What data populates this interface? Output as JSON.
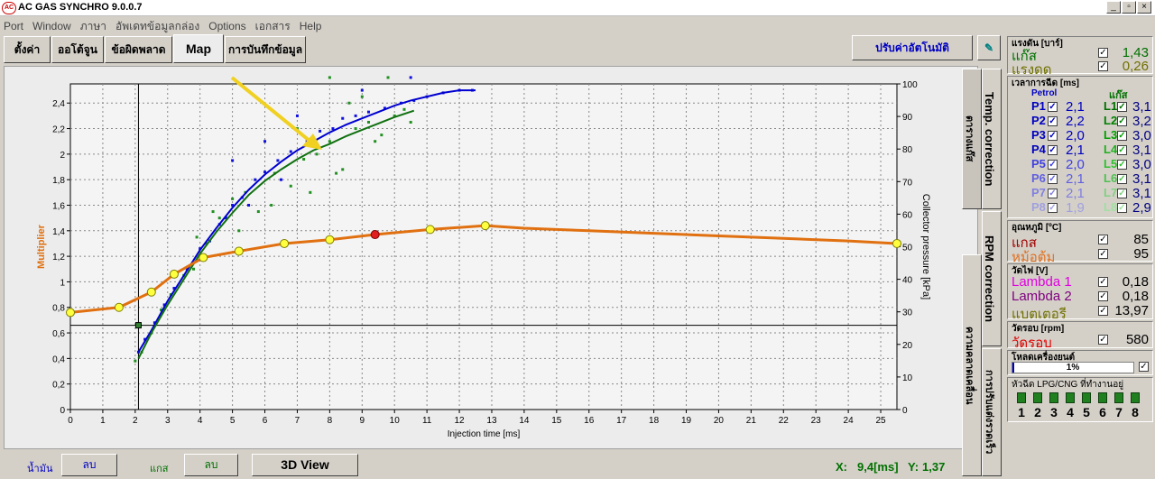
{
  "window": {
    "title": "AC GAS SYNCHRO  9.0.0.7",
    "min": "_",
    "max": "▫",
    "close": "×",
    "logo": "AC"
  },
  "menu": [
    "Port",
    "Window",
    "ภาษา",
    "อัพเดทข้อมูลกล่อง",
    "Options",
    "เอกสาร",
    "Help"
  ],
  "tabs": [
    "ตั้งค่า",
    "ออโต้จูน",
    "ข้อผิดพลาด",
    "Map",
    "การบันทึกข้อมูล"
  ],
  "auto_button": "ปรับค่าอัตโนมัติ",
  "side_tabs": [
    "Temp. correction",
    "ตารางแก๊ส",
    "RPM correction",
    "ความคลาดเคลื่อน",
    "การปรับแต่งรวดเร็ว"
  ],
  "bottom": {
    "petrol_label": "น้ำมัน",
    "petrol_btn": "ลบ",
    "gas_label": "แกส",
    "gas_btn": "ลบ",
    "view_btn": "3D View",
    "x_label": "X:",
    "x_value": "9,4[ms]",
    "y_label": "Y:",
    "y_value": "1,37"
  },
  "pressure": {
    "title": "แรงดัน [บาร์]",
    "rows": [
      {
        "label": "แก๊ส",
        "value": "1,43",
        "color": "#007000"
      },
      {
        "label": "แรงดด",
        "value": "0,26",
        "color": "#707000"
      }
    ]
  },
  "injection": {
    "title": "เวลาการฉีด [ms]",
    "petrol_head": "Petrol",
    "gas_head": "แก๊ส",
    "rows": [
      {
        "p": "P1",
        "pv": "2,1",
        "l": "L1",
        "lv": "3,1"
      },
      {
        "p": "P2",
        "pv": "2,2",
        "l": "L2",
        "lv": "3,2"
      },
      {
        "p": "P3",
        "pv": "2,0",
        "l": "L3",
        "lv": "3,0"
      },
      {
        "p": "P4",
        "pv": "2,1",
        "l": "L4",
        "lv": "3,1"
      },
      {
        "p": "P5",
        "pv": "2,0",
        "l": "L5",
        "lv": "3,0"
      },
      {
        "p": "P6",
        "pv": "2,1",
        "l": "L6",
        "lv": "3,1"
      },
      {
        "p": "P7",
        "pv": "2,1",
        "l": "L7",
        "lv": "3,1"
      },
      {
        "p": "P8",
        "pv": "1,9",
        "l": "L8",
        "lv": "2,9"
      }
    ]
  },
  "temperature": {
    "title": "อุณหภูมิ [ºC]",
    "rows": [
      {
        "label": "แกส",
        "value": "85",
        "color": "#a00000"
      },
      {
        "label": "หม้อต้ม",
        "value": "95",
        "color": "#e07020"
      }
    ]
  },
  "voltage": {
    "title": "วัดไฟ [V]",
    "rows": [
      {
        "label": "Lambda 1",
        "value": "0,18",
        "color": "#e000e0"
      },
      {
        "label": "Lambda 2",
        "value": "0,18",
        "color": "#800080"
      },
      {
        "label": "แบตเตอรี",
        "value": "13,97",
        "color": "#707000"
      }
    ]
  },
  "rpm": {
    "title": "วัดรอบ [rpm]",
    "label": "วัดรอบ",
    "value": "580",
    "color": "#e00000"
  },
  "load": {
    "title": "โหลดเครื่องยนต์",
    "value": "1%"
  },
  "active_injectors": {
    "title": "หัวฉีด LPG/CNG ที่ทำงานอยู่",
    "numbers": [
      "1",
      "2",
      "3",
      "4",
      "5",
      "6",
      "7",
      "8"
    ]
  },
  "chart_data": {
    "type": "scatter",
    "xlabel": "Injection time [ms]",
    "ylabel": "Multiplier",
    "y2label": "Collector pressure [kPa]",
    "xlim": [
      0,
      25.5
    ],
    "ylim": [
      0,
      2.55
    ],
    "y2lim": [
      0,
      100
    ],
    "xticks": [
      "0",
      "1",
      "2",
      "3",
      "4",
      "5",
      "6",
      "7",
      "8",
      "9",
      "10",
      "11",
      "12",
      "13",
      "14",
      "15",
      "16",
      "17",
      "18",
      "19",
      "20",
      "21",
      "22",
      "23",
      "24",
      "25"
    ],
    "yticks": [
      "0",
      "0,2",
      "0,4",
      "0,6",
      "0,8",
      "1",
      "1,2",
      "1,4",
      "1,6",
      "1,8",
      "2",
      "2,2",
      "2,4"
    ],
    "y2ticks": [
      "0",
      "10",
      "20",
      "30",
      "40",
      "50",
      "60",
      "70",
      "80",
      "90",
      "100"
    ],
    "grid": true,
    "multiplier_curve": [
      [
        0,
        0.76
      ],
      [
        1.5,
        0.8
      ],
      [
        2.5,
        0.92
      ],
      [
        3.2,
        1.06
      ],
      [
        4.1,
        1.19
      ],
      [
        5.2,
        1.24
      ],
      [
        6.6,
        1.3
      ],
      [
        8,
        1.33
      ],
      [
        9.4,
        1.37
      ],
      [
        11.1,
        1.41
      ],
      [
        12.8,
        1.44
      ],
      [
        14,
        1.42
      ],
      [
        16,
        1.4
      ],
      [
        18,
        1.38
      ],
      [
        20,
        1.36
      ],
      [
        22,
        1.34
      ],
      [
        24,
        1.32
      ],
      [
        25.5,
        1.3
      ]
    ],
    "multiplier_points": [
      [
        0,
        0.76
      ],
      [
        1.5,
        0.8
      ],
      [
        2.5,
        0.92
      ],
      [
        3.2,
        1.06
      ],
      [
        4.1,
        1.19
      ],
      [
        5.2,
        1.24
      ],
      [
        6.6,
        1.3
      ],
      [
        8,
        1.33
      ],
      [
        11.1,
        1.41
      ],
      [
        12.8,
        1.44
      ],
      [
        25.5,
        1.3
      ]
    ],
    "selected_point": [
      9.4,
      1.37
    ],
    "cursor": {
      "x": 2.1,
      "y": 0.66
    },
    "petrol_curve": [
      [
        2.1,
        0.45
      ],
      [
        2.5,
        0.62
      ],
      [
        3,
        0.85
      ],
      [
        3.5,
        1.05
      ],
      [
        4,
        1.25
      ],
      [
        4.5,
        1.42
      ],
      [
        5,
        1.58
      ],
      [
        5.5,
        1.72
      ],
      [
        6,
        1.84
      ],
      [
        6.5,
        1.94
      ],
      [
        7,
        2.03
      ],
      [
        7.5,
        2.1
      ],
      [
        8,
        2.17
      ],
      [
        8.5,
        2.23
      ],
      [
        9,
        2.28
      ],
      [
        9.5,
        2.33
      ],
      [
        10,
        2.38
      ],
      [
        10.5,
        2.42
      ],
      [
        11,
        2.45
      ],
      [
        11.5,
        2.48
      ],
      [
        12,
        2.5
      ],
      [
        12.5,
        2.5
      ]
    ],
    "gas_curve": [
      [
        2.1,
        0.4
      ],
      [
        2.5,
        0.6
      ],
      [
        3,
        0.82
      ],
      [
        3.5,
        1.02
      ],
      [
        4,
        1.22
      ],
      [
        4.5,
        1.39
      ],
      [
        5,
        1.54
      ],
      [
        5.5,
        1.68
      ],
      [
        6,
        1.79
      ],
      [
        6.5,
        1.88
      ],
      [
        7,
        1.96
      ],
      [
        7.5,
        2.03
      ],
      [
        8,
        2.08
      ],
      [
        8.5,
        2.14
      ],
      [
        9,
        2.19
      ],
      [
        9.5,
        2.24
      ],
      [
        10,
        2.29
      ],
      [
        10.6,
        2.34
      ]
    ],
    "petrol_points": [
      [
        2.1,
        0.45
      ],
      [
        2.3,
        0.55
      ],
      [
        2.6,
        0.68
      ],
      [
        2.9,
        0.82
      ],
      [
        3.2,
        0.95
      ],
      [
        3.6,
        1.1
      ],
      [
        4,
        1.26
      ],
      [
        4.3,
        1.32
      ],
      [
        4.6,
        1.45
      ],
      [
        5,
        1.6
      ],
      [
        5.3,
        1.66
      ],
      [
        5.7,
        1.8
      ],
      [
        6,
        1.86
      ],
      [
        6.4,
        1.95
      ],
      [
        6.8,
        2.02
      ],
      [
        7.3,
        2.1
      ],
      [
        7.7,
        2.18
      ],
      [
        8.1,
        2.2
      ],
      [
        8.4,
        2.28
      ],
      [
        8.8,
        2.3
      ],
      [
        9.2,
        2.33
      ],
      [
        9.7,
        2.36
      ],
      [
        10.2,
        2.4
      ],
      [
        10.6,
        2.42
      ],
      [
        11,
        2.45
      ],
      [
        11.5,
        2.48
      ],
      [
        12,
        2.5
      ],
      [
        12.4,
        2.5
      ],
      [
        10.5,
        2.6
      ],
      [
        9,
        2.5
      ],
      [
        7,
        2.3
      ],
      [
        6,
        2.1
      ],
      [
        5,
        1.95
      ],
      [
        5.5,
        1.6
      ],
      [
        4.8,
        1.5
      ],
      [
        6.5,
        1.8
      ]
    ],
    "gas_points": [
      [
        2,
        0.38
      ],
      [
        2.2,
        0.45
      ],
      [
        2.5,
        0.6
      ],
      [
        2.8,
        0.78
      ],
      [
        3.1,
        0.9
      ],
      [
        3.5,
        1.05
      ],
      [
        3.8,
        1.1
      ],
      [
        4.2,
        1.3
      ],
      [
        4.6,
        1.5
      ],
      [
        5,
        1.65
      ],
      [
        5.4,
        1.7
      ],
      [
        5.8,
        1.55
      ],
      [
        6.3,
        1.85
      ],
      [
        6.8,
        1.75
      ],
      [
        7.2,
        1.96
      ],
      [
        7.6,
        2.0
      ],
      [
        8,
        2.1
      ],
      [
        8.4,
        1.88
      ],
      [
        8.8,
        2.2
      ],
      [
        9.2,
        2.25
      ],
      [
        9.6,
        2.15
      ],
      [
        10,
        2.3
      ],
      [
        10.3,
        2.35
      ],
      [
        8,
        2.6
      ],
      [
        8.6,
        2.4
      ],
      [
        9,
        2.45
      ],
      [
        9.8,
        2.6
      ],
      [
        7,
        2.2
      ],
      [
        6.2,
        1.6
      ],
      [
        5.2,
        1.4
      ],
      [
        4.4,
        1.55
      ],
      [
        3.9,
        1.35
      ],
      [
        7.4,
        1.7
      ],
      [
        8.2,
        1.85
      ],
      [
        9.4,
        2.1
      ],
      [
        10.5,
        2.25
      ]
    ]
  }
}
